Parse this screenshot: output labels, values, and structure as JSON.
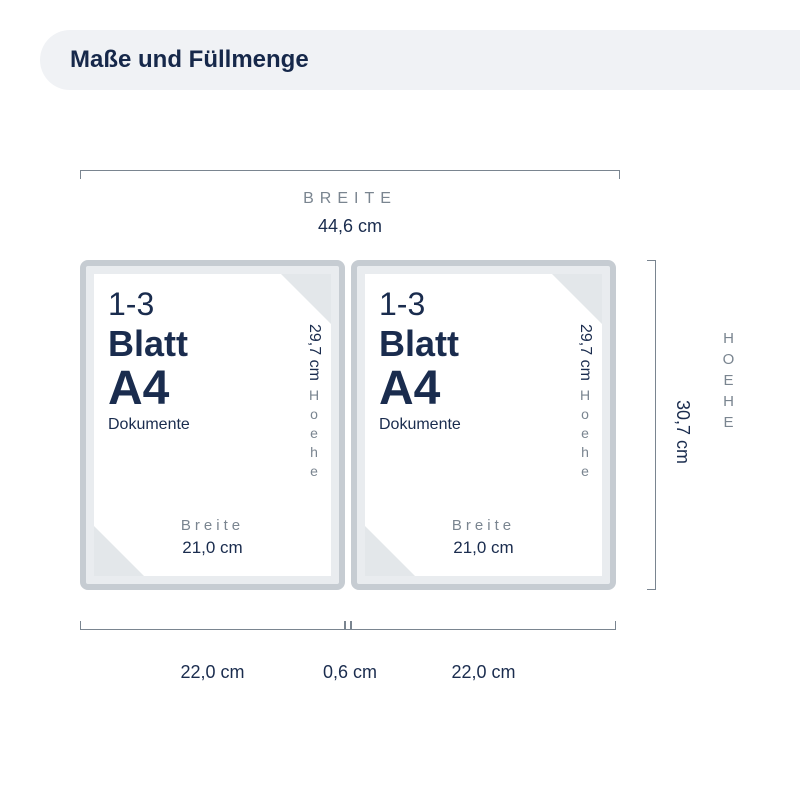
{
  "colors": {
    "header_bg": "#f0f2f5",
    "title": "#16284a",
    "text_blue": "#1a2c4e",
    "dim_gray": "#7a8590",
    "panel_border": "#c6ccd2",
    "panel_bg": "#e9ecef",
    "corner": "#e3e7ea",
    "white": "#ffffff"
  },
  "header": {
    "title": "Maße und Füllmenge"
  },
  "outer": {
    "width_label": "BREITE",
    "width_value": "44,6 cm",
    "height_label": "HOEHE",
    "height_value": "30,7 cm"
  },
  "bottom": {
    "left": "22,0 cm",
    "spine": "0,6 cm",
    "right": "22,0 cm"
  },
  "panel": {
    "count": "1-3",
    "blatt": "Blatt",
    "format": "A4",
    "dokumente": "Dokumente",
    "inner_width_label": "Breite",
    "inner_width_value": "21,0 cm",
    "inner_height_label": "Hoehe",
    "inner_height_value": "29,7 cm"
  }
}
